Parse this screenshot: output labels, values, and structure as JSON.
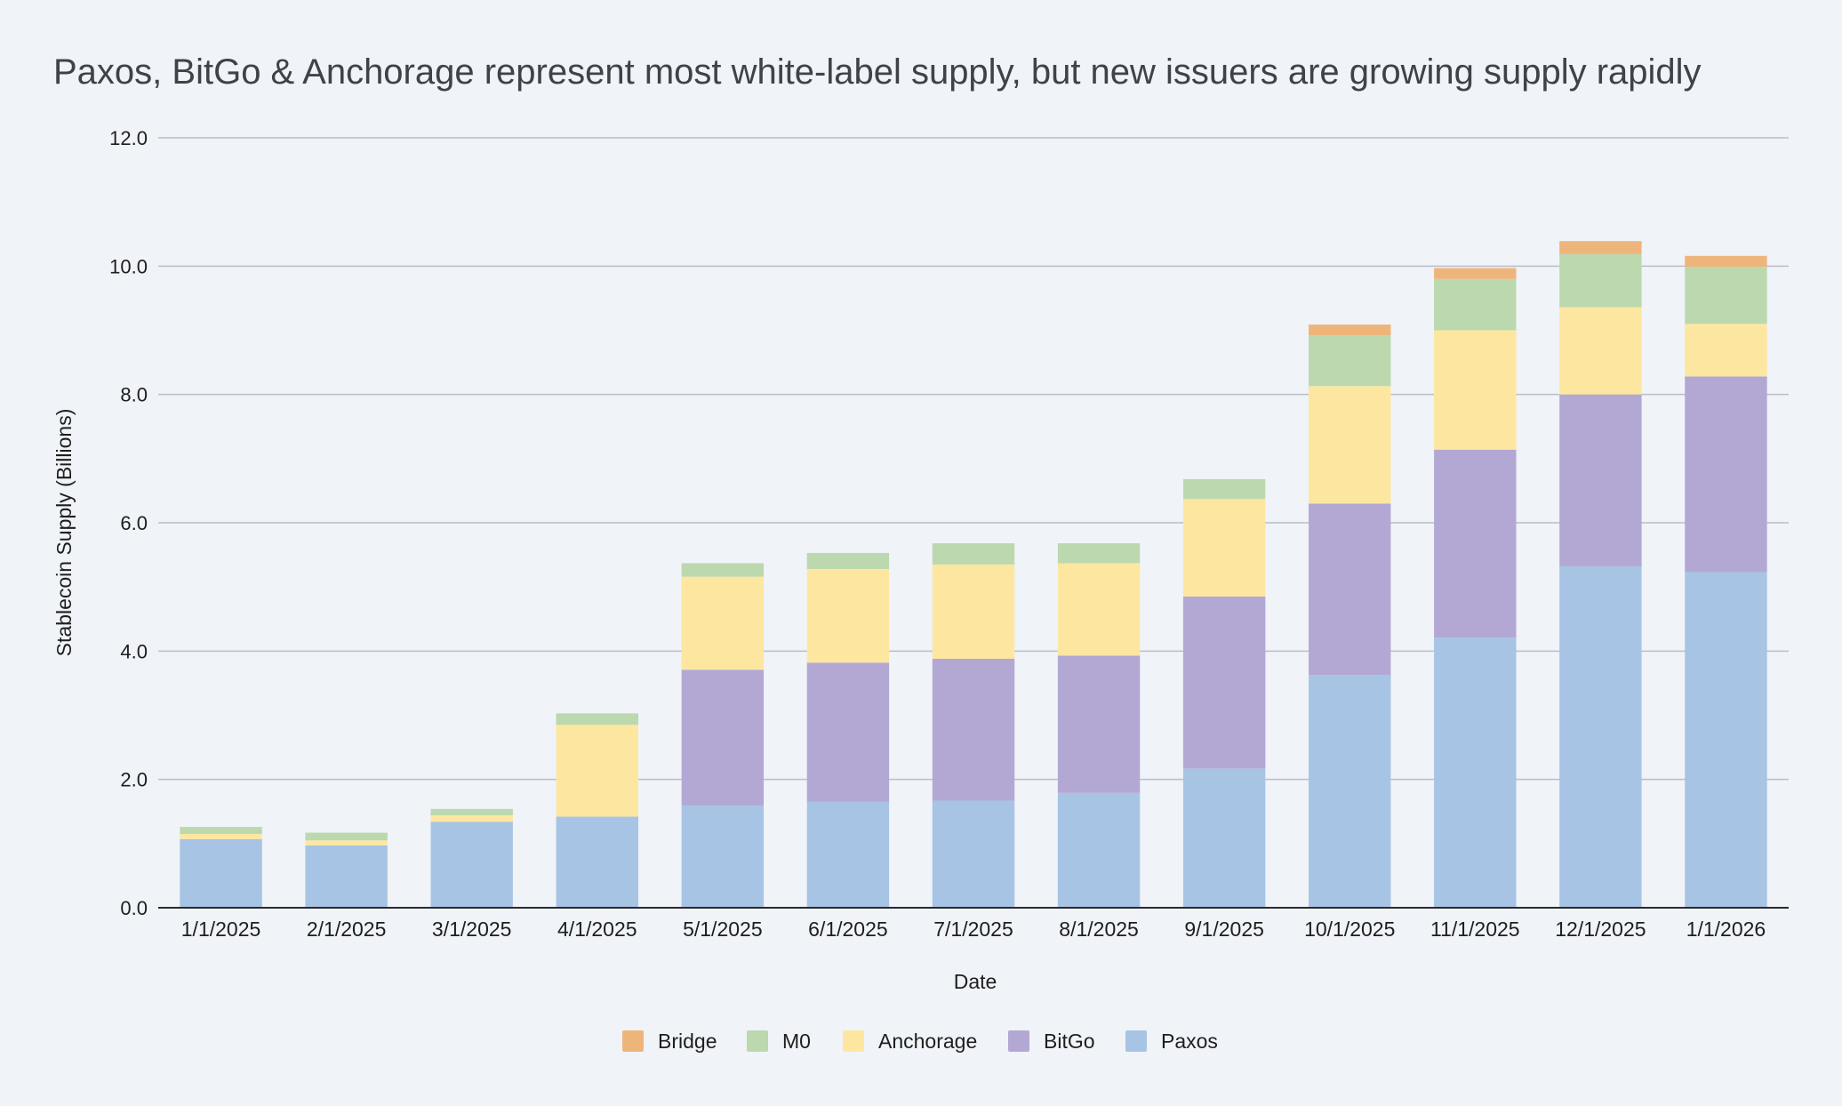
{
  "chart_data": {
    "type": "bar",
    "stacked": true,
    "title": "Paxos, BitGo & Anchorage represent most white-label supply, but new issuers are growing supply rapidly",
    "xlabel": "Date",
    "ylabel": "Stablecoin Supply (Billions)",
    "ylim": [
      0,
      12
    ],
    "yticks": [
      "0.0",
      "2.0",
      "4.0",
      "6.0",
      "8.0",
      "10.0",
      "12.0"
    ],
    "grid": true,
    "legend_position": "bottom",
    "categories": [
      "1/1/2025",
      "2/1/2025",
      "3/1/2025",
      "4/1/2025",
      "5/1/2025",
      "6/1/2025",
      "7/1/2025",
      "8/1/2025",
      "9/1/2025",
      "10/1/2025",
      "11/1/2025",
      "12/1/2025",
      "1/1/2026"
    ],
    "series": [
      {
        "name": "Paxos",
        "color": "#a7c4e4",
        "values": [
          1.07,
          0.97,
          1.34,
          1.42,
          1.59,
          1.65,
          1.67,
          1.79,
          2.17,
          3.63,
          4.21,
          5.32,
          5.23
        ]
      },
      {
        "name": "BitGo",
        "color": "#b3a8d4",
        "values": [
          0.0,
          0.0,
          0.0,
          0.0,
          2.12,
          2.17,
          2.21,
          2.14,
          2.68,
          2.67,
          2.93,
          2.68,
          3.05
        ]
      },
      {
        "name": "Anchorage",
        "color": "#fde7a0",
        "values": [
          0.08,
          0.08,
          0.1,
          1.43,
          1.45,
          1.46,
          1.47,
          1.44,
          1.52,
          1.83,
          1.86,
          1.36,
          0.82
        ]
      },
      {
        "name": "M0",
        "color": "#bcd8ae",
        "values": [
          0.11,
          0.12,
          0.1,
          0.18,
          0.21,
          0.25,
          0.33,
          0.31,
          0.31,
          0.79,
          0.8,
          0.83,
          0.89
        ]
      },
      {
        "name": "Bridge",
        "color": "#eeb57b",
        "values": [
          0.0,
          0.0,
          0.0,
          0.0,
          0.0,
          0.0,
          0.0,
          0.0,
          0.0,
          0.17,
          0.17,
          0.2,
          0.17
        ]
      }
    ],
    "legend_order": [
      "Bridge",
      "M0",
      "Anchorage",
      "BitGo",
      "Paxos"
    ]
  }
}
